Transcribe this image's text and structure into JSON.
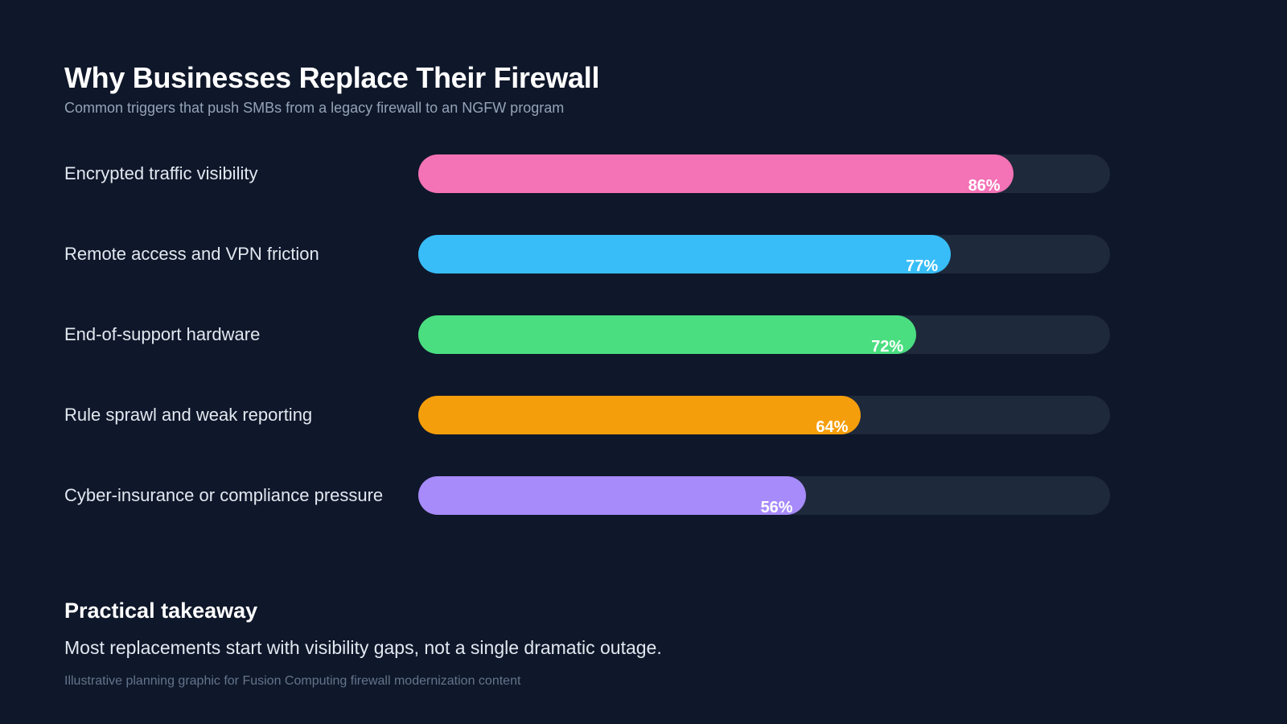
{
  "header": {
    "title": "Why Businesses Replace Their Firewall",
    "subtitle": "Common triggers that push SMBs from a legacy firewall to an NGFW program"
  },
  "chart_data": {
    "type": "bar",
    "orientation": "horizontal",
    "categories": [
      "Encrypted traffic visibility",
      "Remote access and VPN friction",
      "End-of-support hardware",
      "Rule sprawl and weak reporting",
      "Cyber-insurance or compliance pressure"
    ],
    "values": [
      86,
      77,
      72,
      64,
      56
    ],
    "value_labels": [
      "86%",
      "77%",
      "72%",
      "64%",
      "56%"
    ],
    "colors": [
      "#f472b6",
      "#38bdf8",
      "#4ade80",
      "#f59e0b",
      "#a78bfa"
    ],
    "track_color": "#1e293b",
    "xlim": [
      0,
      100
    ],
    "unit": "%",
    "grid": false
  },
  "takeaway": {
    "heading": "Practical takeaway",
    "body": "Most replacements start with visibility gaps, not a single dramatic outage.",
    "footnote": "Illustrative planning graphic for Fusion Computing firewall modernization content"
  }
}
